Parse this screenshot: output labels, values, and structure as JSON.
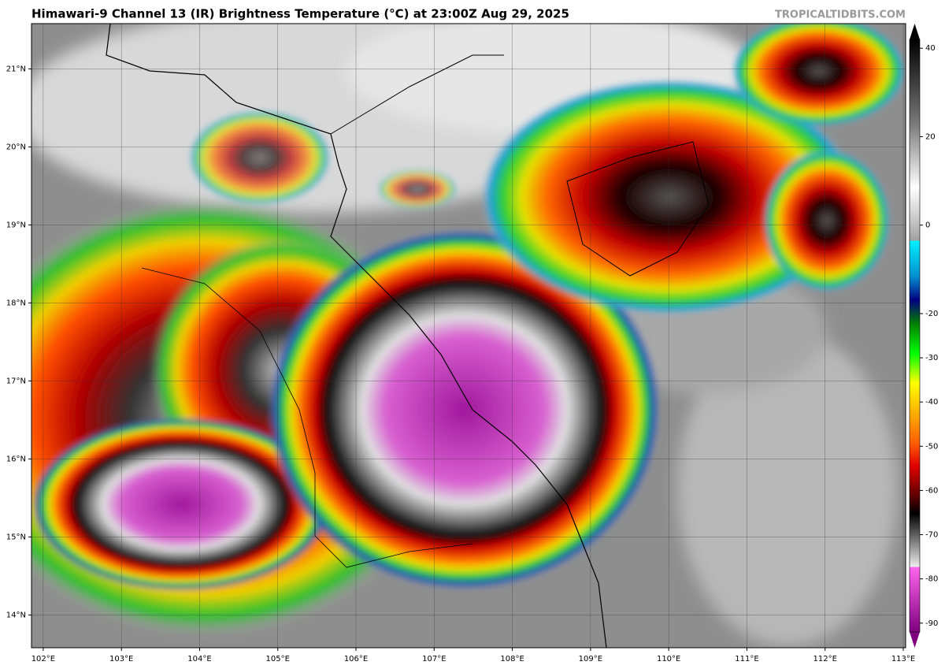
{
  "map": {
    "title": "Himawari-9 Channel 13 (IR) Brightness Temperature (°C) at 23:00Z Aug 29, 2025",
    "watermark": "TROPICALTIDBITS.COM",
    "lon_range": [
      101.85,
      113.03
    ],
    "lat_range": [
      13.58,
      21.58
    ],
    "lon_ticks": [
      {
        "value": 102,
        "label": "102°E"
      },
      {
        "value": 103,
        "label": "103°E"
      },
      {
        "value": 104,
        "label": "104°E"
      },
      {
        "value": 105,
        "label": "105°E"
      },
      {
        "value": 106,
        "label": "106°E"
      },
      {
        "value": 107,
        "label": "107°E"
      },
      {
        "value": 108,
        "label": "108°E"
      },
      {
        "value": 109,
        "label": "109°E"
      },
      {
        "value": 110,
        "label": "110°E"
      },
      {
        "value": 111,
        "label": "111°E"
      },
      {
        "value": 112,
        "label": "112°E"
      },
      {
        "value": 113,
        "label": "113°E"
      }
    ],
    "lat_ticks": [
      {
        "value": 14,
        "label": "14°N"
      },
      {
        "value": 15,
        "label": "15°N"
      },
      {
        "value": 16,
        "label": "16°N"
      },
      {
        "value": 17,
        "label": "17°N"
      },
      {
        "value": 18,
        "label": "18°N"
      },
      {
        "value": 19,
        "label": "19°N"
      },
      {
        "value": 20,
        "label": "20°N"
      },
      {
        "value": 21,
        "label": "21°N"
      }
    ],
    "colorbar": {
      "range": [
        -92,
        42
      ],
      "ticks": [
        40,
        20,
        0,
        -20,
        -30,
        -40,
        -50,
        -60,
        -70,
        -80,
        -90
      ]
    }
  }
}
